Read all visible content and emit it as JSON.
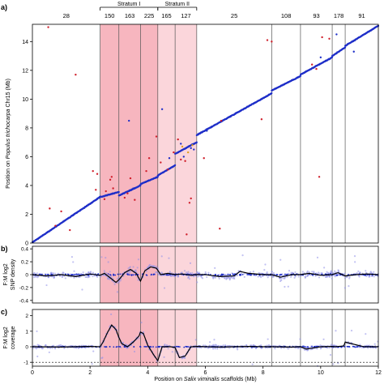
{
  "chart_data": [
    {
      "panel_label": "a)",
      "type": "scatter",
      "xlabel_prefix": "Position on ",
      "xlabel_species": "Salix viminalis",
      "xlabel_suffix": " scaffolds (Mb)",
      "ylabel_prefix": "Position on ",
      "ylabel_species": "Populus trichocarpa",
      "ylabel_suffix": " Chr15 (Mb)",
      "xlim": [
        0,
        12
      ],
      "ylim": [
        0,
        15.2
      ],
      "xticks": [
        "0",
        "2",
        "4",
        "6",
        "8",
        "10",
        "12"
      ],
      "yticks": [
        "0",
        "2",
        "4",
        "6",
        "8",
        "10",
        "12",
        "14"
      ],
      "ytick_values": [
        0,
        2,
        4,
        6,
        8,
        10,
        12,
        14
      ],
      "scaffold_boundaries": [
        2.35,
        3.0,
        3.75,
        4.35,
        4.95,
        5.7,
        8.3,
        9.3,
        10.4,
        10.85
      ],
      "scaffold_labels": [
        {
          "label": "28",
          "start": 0,
          "end": 2.35
        },
        {
          "label": "150",
          "start": 2.35,
          "end": 3.0
        },
        {
          "label": "163",
          "start": 3.0,
          "end": 3.75
        },
        {
          "label": "225",
          "start": 3.75,
          "end": 4.35
        },
        {
          "label": "165",
          "start": 4.35,
          "end": 4.95
        },
        {
          "label": "127",
          "start": 4.95,
          "end": 5.7
        },
        {
          "label": "25",
          "start": 5.7,
          "end": 8.3
        },
        {
          "label": "108",
          "start": 8.3,
          "end": 9.3
        },
        {
          "label": "93",
          "start": 9.3,
          "end": 10.4
        },
        {
          "label": "178",
          "start": 10.4,
          "end": 10.85
        },
        {
          "label": "91",
          "start": 10.85,
          "end": 12
        }
      ],
      "strata": [
        {
          "label": "Stratum I",
          "start": 2.35,
          "end": 4.35,
          "shade": "#f7b6bf"
        },
        {
          "label": "Stratum II",
          "start": 4.35,
          "end": 5.7,
          "shade": "#fbd6db"
        }
      ],
      "series": [
        {
          "color": "#1f2fc8",
          "segments": [
            {
              "x": [
                0.0,
                2.35
              ],
              "y": [
                0.05,
                3.2
              ]
            },
            {
              "x": [
                2.35,
                3.0
              ],
              "y": [
                3.2,
                3.55
              ]
            },
            {
              "x": [
                3.0,
                3.75
              ],
              "y": [
                3.3,
                4.0
              ]
            },
            {
              "x": [
                3.75,
                4.35
              ],
              "y": [
                4.1,
                4.6
              ]
            },
            {
              "x": [
                4.35,
                4.95
              ],
              "y": [
                4.7,
                5.4
              ]
            },
            {
              "x": [
                4.95,
                5.7
              ],
              "y": [
                6.2,
                7.0
              ]
            },
            {
              "x": [
                5.7,
                8.3
              ],
              "y": [
                7.5,
                10.4
              ]
            },
            {
              "x": [
                8.3,
                9.3
              ],
              "y": [
                10.6,
                11.6
              ]
            },
            {
              "x": [
                9.3,
                10.4
              ],
              "y": [
                11.7,
                12.9
              ]
            },
            {
              "x": [
                10.4,
                10.85
              ],
              "y": [
                13.0,
                13.6
              ]
            },
            {
              "x": [
                10.85,
                12.0
              ],
              "y": [
                13.7,
                15.1
              ]
            }
          ]
        },
        {
          "color": "#d0202c",
          "points": [
            [
              0.55,
              15.0
            ],
            [
              1.5,
              11.7
            ],
            [
              0.6,
              2.4
            ],
            [
              0.8,
              1.2
            ],
            [
              2.1,
              5.0
            ],
            [
              2.25,
              4.8
            ],
            [
              2.5,
              3.05
            ],
            [
              2.55,
              3.6
            ],
            [
              2.7,
              4.4
            ],
            [
              2.75,
              4.6
            ],
            [
              2.8,
              3.8
            ],
            [
              3.2,
              3.15
            ],
            [
              3.3,
              3.45
            ],
            [
              3.55,
              3.0
            ],
            [
              3.95,
              5.0
            ],
            [
              4.05,
              5.9
            ],
            [
              4.3,
              7.4
            ],
            [
              4.45,
              5.6
            ],
            [
              4.9,
              6.3
            ],
            [
              5.05,
              7.2
            ],
            [
              5.3,
              5.7
            ],
            [
              5.45,
              2.8
            ],
            [
              5.5,
              3.1
            ],
            [
              5.95,
              5.9
            ],
            [
              6.55,
              8.5
            ],
            [
              7.95,
              8.6
            ],
            [
              8.15,
              14.1
            ],
            [
              8.3,
              14.0
            ],
            [
              9.7,
              12.4
            ],
            [
              9.85,
              12.1
            ],
            [
              10.05,
              14.3
            ],
            [
              10.3,
              14.2
            ],
            [
              9.95,
              4.6
            ],
            [
              5.35,
              0.6
            ],
            [
              6.5,
              1.0
            ],
            [
              1.0,
              2.2
            ],
            [
              2.2,
              3.7
            ],
            [
              3.4,
              4.5
            ],
            [
              5.15,
              5.8
            ],
            [
              1.3,
              0.9
            ],
            [
              4.7,
              5.1
            ]
          ]
        },
        {
          "color": "#1f2fc8",
          "points": [
            [
              3.35,
              8.5
            ],
            [
              4.5,
              9.3
            ],
            [
              5.15,
              6.9
            ],
            [
              5.25,
              6.0
            ],
            [
              5.6,
              6.5
            ],
            [
              6.05,
              7.8
            ],
            [
              10.0,
              12.9
            ],
            [
              10.55,
              14.5
            ],
            [
              11.15,
              13.3
            ],
            [
              4.75,
              5.9
            ],
            [
              5.5,
              6.6
            ]
          ]
        },
        {
          "color": "#e0a020",
          "points": [
            [
              5.4,
              6.3
            ],
            [
              5.55,
              6.8
            ],
            [
              5.2,
              6.7
            ]
          ]
        }
      ]
    },
    {
      "panel_label": "b)",
      "type": "scatter",
      "ylabel_line1": "F:M log2",
      "ylabel_line2": "SNP density",
      "xlim": [
        0,
        12
      ],
      "ylim": [
        -0.44,
        0.44
      ],
      "yticks": [
        "0.4",
        "0.2",
        "0",
        "-0.2",
        "-0.4"
      ],
      "ytick_values": [
        0.4,
        0.2,
        0,
        -0.2,
        -0.4
      ],
      "line_color": "#000000",
      "point_color": "#9090e8",
      "line": {
        "x": [
          0.0,
          0.5,
          1.0,
          1.5,
          2.0,
          2.35,
          2.5,
          2.7,
          2.9,
          3.0,
          3.2,
          3.4,
          3.6,
          3.75,
          3.9,
          4.1,
          4.3,
          4.45,
          4.7,
          4.95,
          5.2,
          5.5,
          5.7,
          6.0,
          6.5,
          7.0,
          7.2,
          7.5,
          8.0,
          8.3,
          8.6,
          9.0,
          9.3,
          9.6,
          10.0,
          10.4,
          10.6,
          10.85,
          11.2,
          11.6,
          12.0
        ],
        "y": [
          0.0,
          -0.02,
          0.0,
          -0.03,
          0.01,
          -0.01,
          0.02,
          -0.05,
          -0.12,
          -0.08,
          0.03,
          0.08,
          0.02,
          -0.1,
          0.06,
          0.12,
          0.1,
          0.0,
          0.02,
          0.0,
          0.01,
          -0.01,
          0.0,
          0.0,
          -0.03,
          -0.02,
          0.05,
          0.02,
          0.0,
          0.0,
          -0.04,
          0.0,
          0.0,
          0.02,
          -0.01,
          0.0,
          0.03,
          -0.02,
          0.0,
          0.01,
          0.0
        ]
      }
    },
    {
      "panel_label": "c)",
      "type": "scatter",
      "ylabel_line1": "F:M log2",
      "ylabel_line2": "coverage",
      "xlim": [
        0,
        12
      ],
      "ylim": [
        -1.25,
        2.4
      ],
      "yticks": [
        "2",
        "1",
        "0",
        "-1"
      ],
      "ytick_values": [
        2,
        1,
        0,
        -1
      ],
      "dashed_reference": -1,
      "line_color": "#000000",
      "point_color": "#9090e8",
      "line": {
        "x": [
          0.0,
          1.0,
          2.0,
          2.35,
          2.45,
          2.6,
          2.75,
          2.9,
          3.0,
          3.1,
          3.3,
          3.5,
          3.7,
          3.75,
          3.85,
          4.0,
          4.2,
          4.35,
          4.5,
          4.8,
          4.95,
          5.1,
          5.3,
          5.5,
          5.7,
          6.5,
          7.0,
          7.5,
          8.0,
          8.3,
          9.0,
          9.3,
          9.5,
          10.0,
          10.4,
          10.5,
          10.8,
          10.85,
          11.5,
          12.0
        ],
        "y": [
          0.0,
          -0.02,
          0.02,
          0.0,
          0.3,
          0.9,
          1.4,
          1.1,
          0.6,
          0.2,
          0.0,
          0.3,
          0.7,
          0.95,
          0.85,
          0.1,
          -0.5,
          -0.9,
          0.0,
          0.0,
          -0.05,
          -0.7,
          -0.6,
          0.0,
          0.02,
          -0.02,
          0.0,
          0.02,
          0.0,
          0.0,
          -0.02,
          0.0,
          -0.15,
          0.0,
          0.02,
          0.0,
          0.05,
          0.3,
          0.0,
          0.0
        ]
      }
    }
  ]
}
